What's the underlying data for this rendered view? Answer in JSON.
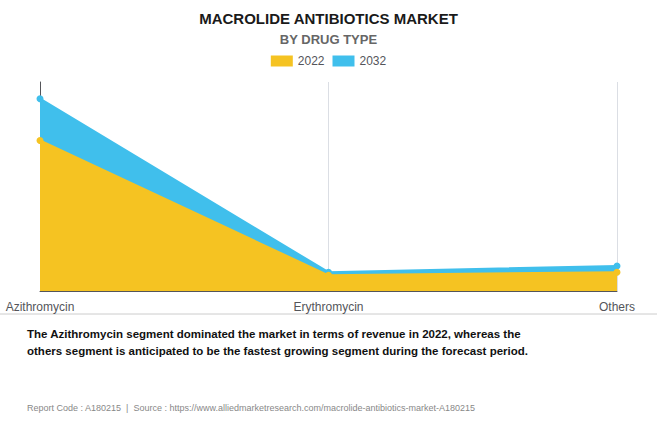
{
  "chart_data": {
    "type": "area",
    "title": "MACROLIDE ANTIBIOTICS MARKET",
    "subtitle": "BY DRUG TYPE",
    "categories": [
      "Azithromycin",
      "Erythromycin",
      "Others"
    ],
    "series": [
      {
        "name": "2022",
        "color": "#F5C322",
        "values": [
          72,
          7.5,
          9
        ]
      },
      {
        "name": "2032",
        "color": "#40BFEC",
        "values": [
          92,
          9,
          12
        ]
      }
    ],
    "ylim": [
      0,
      100
    ],
    "yticks": [],
    "tick_labels": "x",
    "grid": true,
    "legend": "top",
    "marker": "circle",
    "annotations": [
      "The Azithromycin segment dominated the market in terms of revenue in 2022, whereas the\nothers segment is anticipated to be the fastest growing segment during the forecast period.",
      "Report Code : A180215  |  Source : https://www.alliedmarketresearch.com/macrolide-antibiotics-market-A180215"
    ]
  }
}
